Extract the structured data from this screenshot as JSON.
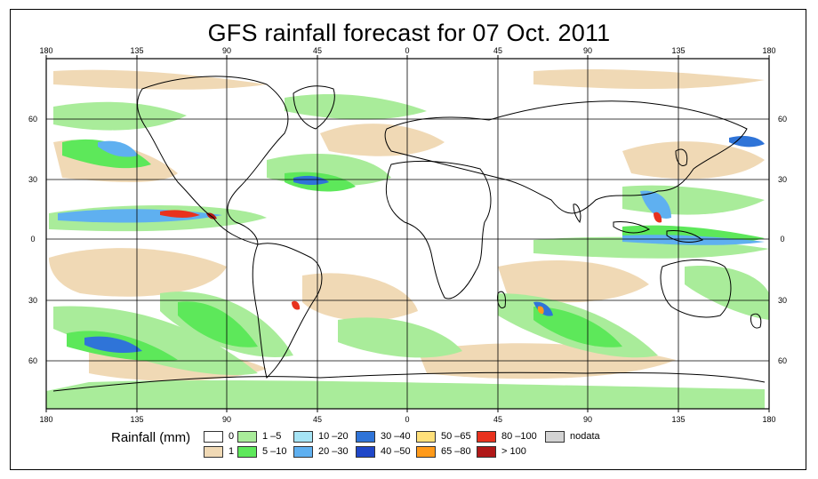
{
  "title": "GFS rainfall forecast for 07 Oct. 2011",
  "map": {
    "top_lon_labels": [
      "180",
      "135",
      "90",
      "45",
      "0",
      "45",
      "90",
      "135",
      "180"
    ],
    "bottom_lon_labels": [
      "180",
      "135",
      "90",
      "45",
      "0",
      "45",
      "90",
      "135",
      "180"
    ],
    "left_lat_labels": [
      "60",
      "30",
      "0",
      "30",
      "60"
    ],
    "right_lat_labels": [
      "60",
      "30",
      "0",
      "30",
      "60"
    ]
  },
  "legend": {
    "label": "Rainfall (mm)",
    "items": [
      {
        "label": "0",
        "color": "#ffffff"
      },
      {
        "label": "1",
        "color": "#f0d9b5"
      },
      {
        "label": "1 –5",
        "color": "#a9ec9a"
      },
      {
        "label": "5 –10",
        "color": "#5de85a"
      },
      {
        "label": "10 –20",
        "color": "#a6e4f5"
      },
      {
        "label": "20 –30",
        "color": "#5fb0f0"
      },
      {
        "label": "30 –40",
        "color": "#2f74d8"
      },
      {
        "label": "40 –50",
        "color": "#1f47c8"
      },
      {
        "label": "50 –65",
        "color": "#ffe07a"
      },
      {
        "label": "65 –80",
        "color": "#ff9a1a"
      },
      {
        "label": "80 –100",
        "color": "#e8321e"
      },
      {
        "label": "> 100",
        "color": "#b01818"
      },
      {
        "label": "nodata",
        "color": "#d3d3d3"
      }
    ]
  }
}
